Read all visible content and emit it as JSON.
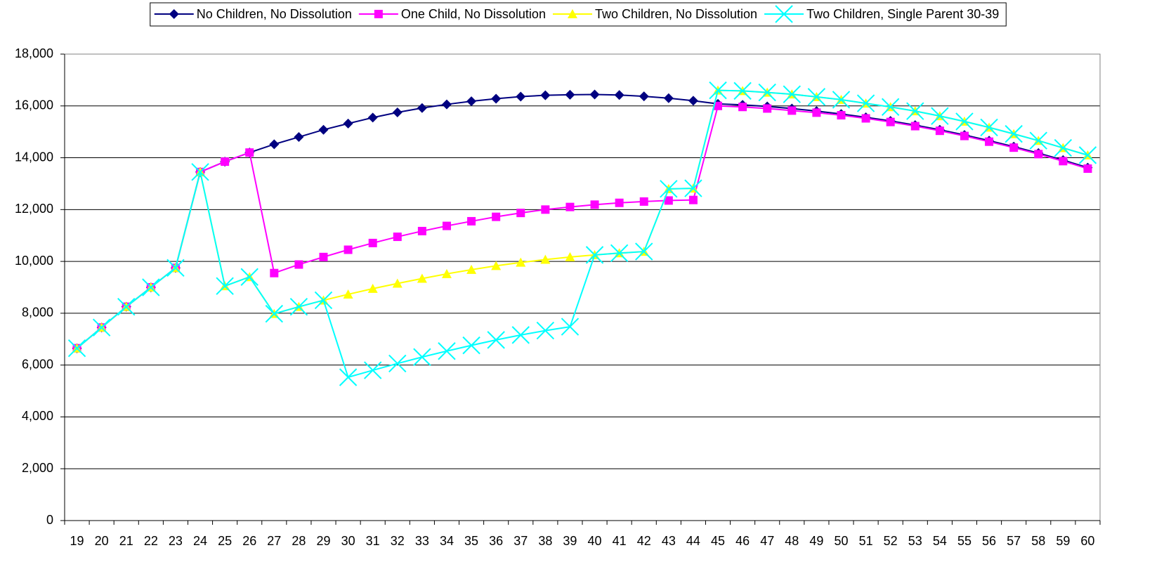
{
  "chart_data": {
    "type": "line",
    "categories": [
      19,
      20,
      21,
      22,
      23,
      24,
      25,
      26,
      27,
      28,
      29,
      30,
      31,
      32,
      33,
      34,
      35,
      36,
      37,
      38,
      39,
      40,
      41,
      42,
      43,
      44,
      45,
      46,
      47,
      48,
      49,
      50,
      51,
      52,
      53,
      54,
      55,
      56,
      57,
      58,
      59,
      60
    ],
    "series": [
      {
        "name": "No Children, No Dissolution",
        "color": "#000080",
        "marker": "diamond",
        "values": [
          6650,
          7450,
          8250,
          9000,
          9750,
          13450,
          13850,
          14200,
          14520,
          14800,
          15080,
          15320,
          15550,
          15750,
          15920,
          16060,
          16180,
          16280,
          16360,
          16410,
          16430,
          16440,
          16420,
          16370,
          16300,
          16200,
          16080,
          16040,
          15980,
          15900,
          15800,
          15690,
          15560,
          15420,
          15260,
          15080,
          14880,
          14660,
          14430,
          14180,
          13910,
          13620
        ]
      },
      {
        "name": "One Child, No Dissolution",
        "color": "#ff00ff",
        "marker": "square",
        "values": [
          6650,
          7450,
          8250,
          9000,
          9750,
          13450,
          13850,
          14200,
          9550,
          9880,
          10170,
          10450,
          10710,
          10950,
          11170,
          11370,
          11550,
          11720,
          11870,
          12000,
          12100,
          12190,
          12260,
          12310,
          12350,
          12370,
          16000,
          15960,
          15900,
          15820,
          15740,
          15640,
          15520,
          15380,
          15220,
          15040,
          14840,
          14620,
          14390,
          14140,
          13870,
          13580
        ]
      },
      {
        "name": "Two Children, No Dissolution",
        "color": "#ffff00",
        "marker": "triangle",
        "values": [
          6650,
          7450,
          8250,
          9000,
          9750,
          13450,
          9050,
          9400,
          7980,
          8250,
          8500,
          8730,
          8950,
          9150,
          9340,
          9520,
          9680,
          9830,
          9960,
          10070,
          10170,
          10250,
          10320,
          10380,
          12800,
          12820,
          16600,
          16580,
          16520,
          16450,
          16350,
          16240,
          16100,
          15960,
          15800,
          15610,
          15400,
          15170,
          14920,
          14660,
          14380,
          14100
        ]
      },
      {
        "name": "Two Children, Single Parent 30-39",
        "color": "#00ffff",
        "marker": "x",
        "values": [
          6650,
          7450,
          8250,
          9000,
          9750,
          13450,
          9050,
          9400,
          7980,
          8250,
          8500,
          5530,
          5800,
          6060,
          6310,
          6540,
          6760,
          6970,
          7160,
          7330,
          7480,
          10250,
          10320,
          10380,
          12800,
          12820,
          16600,
          16580,
          16520,
          16450,
          16350,
          16240,
          16100,
          15960,
          15800,
          15610,
          15400,
          15170,
          14920,
          14660,
          14380,
          14100
        ]
      }
    ],
    "ylim": [
      0,
      18000
    ],
    "yticks": [
      0,
      {
        "value": 2000,
        "label": "2,000"
      },
      {
        "value": 4000,
        "label": "4,000"
      },
      {
        "value": 6000,
        "label": "6,000"
      },
      {
        "value": 8000,
        "label": "8,000"
      },
      {
        "value": 10000,
        "label": "10,000"
      },
      {
        "value": 12000,
        "label": "12,000"
      },
      {
        "value": 14000,
        "label": "14,000"
      },
      {
        "value": 16000,
        "label": "16,000"
      },
      {
        "value": 18000,
        "label": "18,000"
      }
    ],
    "grid": true,
    "legend": "top"
  }
}
